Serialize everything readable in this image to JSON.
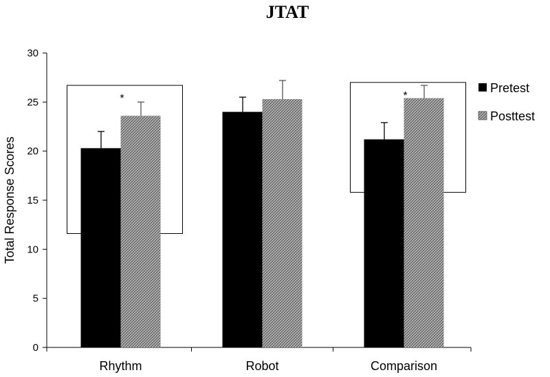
{
  "chart_data": {
    "type": "bar",
    "title": "JTAT",
    "ylabel": "Total Response Scores",
    "xlabel": "",
    "ylim": [
      0,
      30
    ],
    "yticks": [
      0,
      5,
      10,
      15,
      20,
      25,
      30
    ],
    "categories": [
      "Rhythm",
      "Robot",
      "Comparison"
    ],
    "series": [
      {
        "name": "Pretest",
        "values": [
          20.3,
          24.0,
          21.2
        ],
        "errors": [
          1.7,
          1.5,
          1.7
        ],
        "color": "#000000"
      },
      {
        "name": "Posttest",
        "values": [
          23.6,
          25.3,
          25.4
        ],
        "errors": [
          1.4,
          1.9,
          1.3
        ],
        "color": "#9a9a9a",
        "pattern": "crosshatch"
      }
    ],
    "legend": "right",
    "grid": false,
    "annotations": [
      {
        "text": "*",
        "category": "Rhythm",
        "box_y": [
          11.6,
          26.7
        ]
      },
      {
        "text": "*",
        "category": "Comparison",
        "box_y": [
          15.8,
          27.0
        ]
      }
    ]
  }
}
